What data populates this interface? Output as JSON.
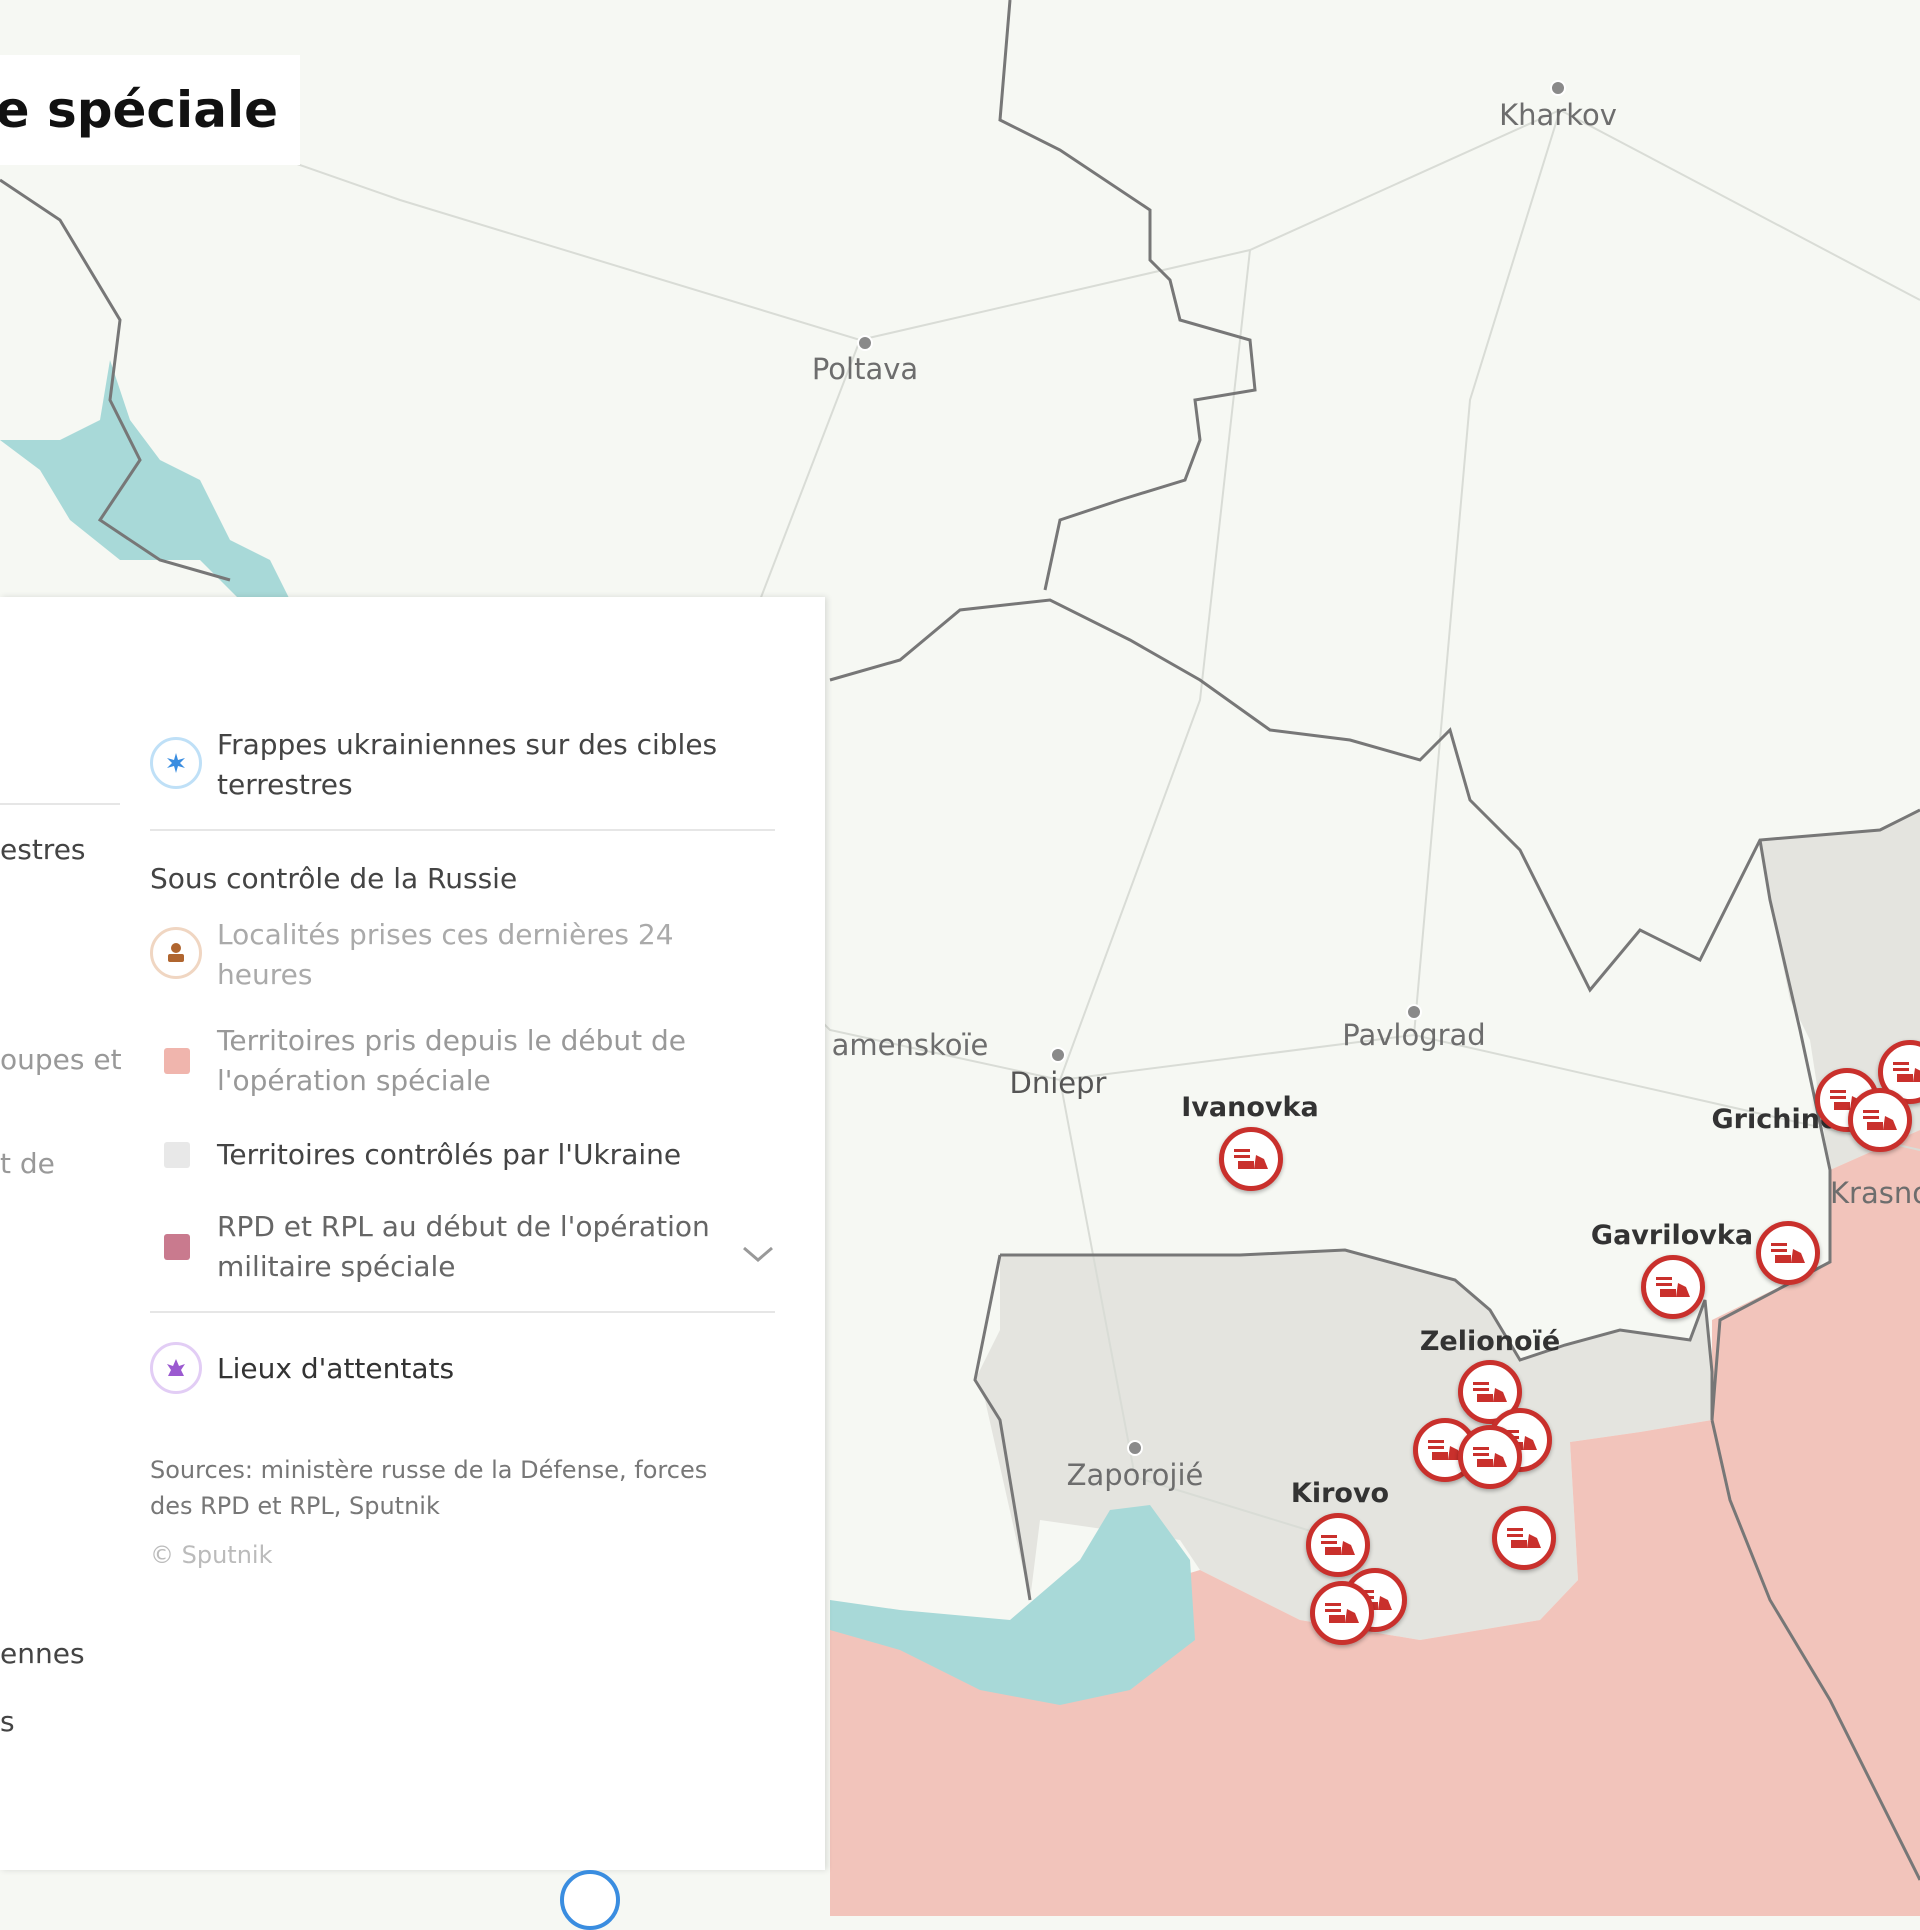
{
  "title": "e spéciale",
  "colors": {
    "russia_taken": "#f2c4bb",
    "ukraine_controlled": "#e4e4df",
    "rpd_rpl": "#c97a8e",
    "water": "#a8d9d8",
    "marker_red": "#c9302c",
    "strike_blue": "#3a8de0",
    "attack_purple": "#9b59d0",
    "captured_brown": "#b0652f"
  },
  "map": {
    "places": [
      {
        "name": "Kharkov"
      },
      {
        "name": "Poltava"
      },
      {
        "name": "Pavlograd"
      },
      {
        "name": "Dniepr"
      },
      {
        "name": "amenskoïe"
      },
      {
        "name": "Zaporojié"
      },
      {
        "name": "Ivanovka"
      },
      {
        "name": "Grichino"
      },
      {
        "name": "Krasno"
      },
      {
        "name": "Gavrilovka"
      },
      {
        "name": "Zelionoïé"
      },
      {
        "name": "Kirovo"
      }
    ],
    "marker_icon": "truck-attack-icon"
  },
  "legend": {
    "collapse_icon": "chevron-down-icon",
    "cut_left": [
      "estres",
      "oupes et",
      "t de",
      "ennes",
      "s"
    ],
    "strikes": {
      "icon": "strike-icon",
      "label": "Frappes ukrainiennes sur des cibles terrestres"
    },
    "section_title": "Sous contrôle de la Russie",
    "items": [
      {
        "icon": "captured-locality-icon",
        "label": "Localités prises ces dernières 24 heures"
      },
      {
        "icon": "square-swatch",
        "label": "Territoires pris depuis le début de l'opération spéciale"
      },
      {
        "icon": "square-swatch",
        "label": "Territoires contrôlés par l'Ukraine"
      },
      {
        "icon": "square-swatch",
        "label": "RPD et RPL au début de l'opération militaire spéciale"
      }
    ],
    "attacks": {
      "icon": "attack-site-icon",
      "label": "Lieux d'attentats"
    },
    "sources": "Sources: ministère russe de la Défense, forces des RPD et RPL, Sputnik",
    "copyright": "© Sputnik"
  }
}
